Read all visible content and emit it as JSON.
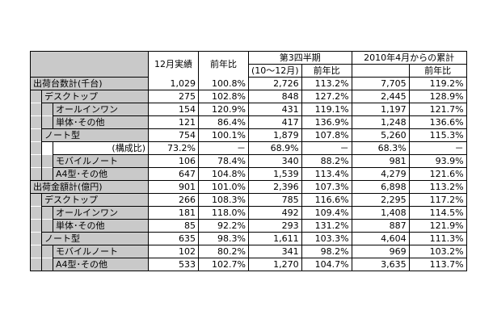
{
  "headers": {
    "monthly": "12月実績",
    "yoy": "前年比",
    "q3_title": "第3四半期",
    "q3_range": "(10～12月)",
    "q3_yoy": "前年比",
    "cum_title": "2010年4月からの累計",
    "cum_yoy": "前年比"
  },
  "rows": [
    {
      "label": "出荷台数計(千台)",
      "indent": 0,
      "cells": [
        "1,029",
        "100.8%",
        "2,726",
        "113.2%",
        "7,705",
        "119.2%"
      ]
    },
    {
      "label": "デスクトップ",
      "indent": 1,
      "cells": [
        "275",
        "102.8%",
        "848",
        "127.2%",
        "2,445",
        "128.9%"
      ]
    },
    {
      "label": "オールインワン",
      "indent": 2,
      "cells": [
        "154",
        "120.9%",
        "431",
        "119.1%",
        "1,197",
        "121.7%"
      ]
    },
    {
      "label": "単体･その他",
      "indent": 2,
      "cells": [
        "121",
        "86.4%",
        "417",
        "136.9%",
        "1,248",
        "136.6%"
      ]
    },
    {
      "label": "ノート型",
      "indent": 1,
      "cells": [
        "754",
        "100.1%",
        "1,879",
        "107.8%",
        "5,260",
        "115.3%"
      ]
    },
    {
      "label": "(構成比)",
      "indent": 3,
      "cells": [
        "73.2%",
        "－",
        "68.9%",
        "－",
        "68.3%",
        "－"
      ]
    },
    {
      "label": "モバイルノート",
      "indent": 2,
      "cells": [
        "106",
        "78.4%",
        "340",
        "88.2%",
        "981",
        "93.9%"
      ]
    },
    {
      "label": "A4型･その他",
      "indent": 2,
      "cells": [
        "647",
        "104.8%",
        "1,539",
        "113.4%",
        "4,279",
        "121.6%"
      ]
    },
    {
      "label": "出荷金額計(億円)",
      "indent": 0,
      "cells": [
        "901",
        "101.0%",
        "2,396",
        "107.3%",
        "6,898",
        "113.2%"
      ]
    },
    {
      "label": "デスクトップ",
      "indent": 1,
      "cells": [
        "266",
        "108.3%",
        "785",
        "116.6%",
        "2,295",
        "117.2%"
      ]
    },
    {
      "label": "オールインワン",
      "indent": 2,
      "cells": [
        "181",
        "118.0%",
        "492",
        "109.4%",
        "1,408",
        "114.5%"
      ]
    },
    {
      "label": "単体･その他",
      "indent": 2,
      "cells": [
        "85",
        "92.2%",
        "293",
        "131.2%",
        "887",
        "121.9%"
      ]
    },
    {
      "label": "ノート型",
      "indent": 1,
      "cells": [
        "635",
        "98.3%",
        "1,611",
        "103.3%",
        "4,604",
        "111.3%"
      ]
    },
    {
      "label": "モバイルノート",
      "indent": 2,
      "cells": [
        "102",
        "80.2%",
        "341",
        "98.2%",
        "969",
        "103.2%"
      ]
    },
    {
      "label": "A4型･その他",
      "indent": 2,
      "cells": [
        "533",
        "102.7%",
        "1,270",
        "104.7%",
        "3,635",
        "113.7%"
      ]
    }
  ]
}
